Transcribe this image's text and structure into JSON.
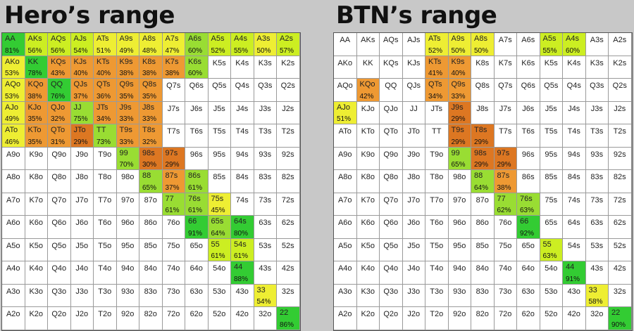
{
  "colors": {
    "empty": "#ffffff",
    "bright_green": "#33cc33",
    "light_green": "#99dd33",
    "yellow_green": "#ccee22",
    "yellow": "#eeee33",
    "orange": "#ee9933",
    "dark_orange": "#dd7722"
  },
  "hands": [
    [
      "AA",
      "AKs",
      "AQs",
      "AJs",
      "ATs",
      "A9s",
      "A8s",
      "A7s",
      "A6s",
      "A5s",
      "A4s",
      "A3s",
      "A2s"
    ],
    [
      "AKo",
      "KK",
      "KQs",
      "KJs",
      "KTs",
      "K9s",
      "K8s",
      "K7s",
      "K6s",
      "K5s",
      "K4s",
      "K3s",
      "K2s"
    ],
    [
      "AQo",
      "KQo",
      "QQ",
      "QJs",
      "QTs",
      "Q9s",
      "Q8s",
      "Q7s",
      "Q6s",
      "Q5s",
      "Q4s",
      "Q3s",
      "Q2s"
    ],
    [
      "AJo",
      "KJo",
      "QJo",
      "JJ",
      "JTs",
      "J9s",
      "J8s",
      "J7s",
      "J6s",
      "J5s",
      "J4s",
      "J3s",
      "J2s"
    ],
    [
      "ATo",
      "KTo",
      "QTo",
      "JTo",
      "TT",
      "T9s",
      "T8s",
      "T7s",
      "T6s",
      "T5s",
      "T4s",
      "T3s",
      "T2s"
    ],
    [
      "A9o",
      "K9o",
      "Q9o",
      "J9o",
      "T9o",
      "99",
      "98s",
      "97s",
      "96s",
      "95s",
      "94s",
      "93s",
      "92s"
    ],
    [
      "A8o",
      "K8o",
      "Q8o",
      "J8o",
      "T8o",
      "98o",
      "88",
      "87s",
      "86s",
      "85s",
      "84s",
      "83s",
      "82s"
    ],
    [
      "A7o",
      "K7o",
      "Q7o",
      "J7o",
      "T7o",
      "97o",
      "87o",
      "77",
      "76s",
      "75s",
      "74s",
      "73s",
      "72s"
    ],
    [
      "A6o",
      "K6o",
      "Q6o",
      "J6o",
      "T6o",
      "96o",
      "86o",
      "76o",
      "66",
      "65s",
      "64s",
      "63s",
      "62s"
    ],
    [
      "A5o",
      "K5o",
      "Q5o",
      "J5o",
      "T5o",
      "95o",
      "85o",
      "75o",
      "65o",
      "55",
      "54s",
      "53s",
      "52s"
    ],
    [
      "A4o",
      "K4o",
      "Q4o",
      "J4o",
      "T4o",
      "94o",
      "84o",
      "74o",
      "64o",
      "54o",
      "44",
      "43s",
      "42s"
    ],
    [
      "A3o",
      "K3o",
      "Q3o",
      "J3o",
      "T3o",
      "93o",
      "83o",
      "73o",
      "63o",
      "53o",
      "43o",
      "33",
      "32s"
    ],
    [
      "A2o",
      "K2o",
      "Q2o",
      "J2o",
      "T2o",
      "92o",
      "82o",
      "72o",
      "62o",
      "52o",
      "42o",
      "32o",
      "22"
    ]
  ],
  "hero": {
    "title": "Hero’s range",
    "cells": {
      "0,0": {
        "pct": "81%",
        "color": "bright_green"
      },
      "0,1": {
        "pct": "56%",
        "color": "yellow_green"
      },
      "0,2": {
        "pct": "56%",
        "color": "yellow_green"
      },
      "0,3": {
        "pct": "54%",
        "color": "yellow_green"
      },
      "0,4": {
        "pct": "51%",
        "color": "yellow"
      },
      "0,5": {
        "pct": "49%",
        "color": "yellow"
      },
      "0,6": {
        "pct": "48%",
        "color": "yellow"
      },
      "0,7": {
        "pct": "47%",
        "color": "yellow"
      },
      "0,8": {
        "pct": "60%",
        "color": "light_green"
      },
      "0,9": {
        "pct": "52%",
        "color": "yellow_green"
      },
      "0,10": {
        "pct": "55%",
        "color": "yellow_green"
      },
      "0,11": {
        "pct": "50%",
        "color": "yellow"
      },
      "0,12": {
        "pct": "57%",
        "color": "yellow_green"
      },
      "1,0": {
        "pct": "53%",
        "color": "yellow"
      },
      "1,1": {
        "pct": "78%",
        "color": "bright_green"
      },
      "1,2": {
        "pct": "43%",
        "color": "orange"
      },
      "1,3": {
        "pct": "40%",
        "color": "orange"
      },
      "1,4": {
        "pct": "40%",
        "color": "orange"
      },
      "1,5": {
        "pct": "38%",
        "color": "orange"
      },
      "1,6": {
        "pct": "38%",
        "color": "orange"
      },
      "1,7": {
        "pct": "38%",
        "color": "orange"
      },
      "1,8": {
        "pct": "60%",
        "color": "light_green"
      },
      "2,0": {
        "pct": "53%",
        "color": "yellow"
      },
      "2,1": {
        "pct": "38%",
        "color": "orange"
      },
      "2,2": {
        "pct": "76%",
        "color": "bright_green"
      },
      "2,3": {
        "pct": "37%",
        "color": "orange"
      },
      "2,4": {
        "pct": "36%",
        "color": "orange"
      },
      "2,5": {
        "pct": "35%",
        "color": "orange"
      },
      "2,6": {
        "pct": "35%",
        "color": "orange"
      },
      "3,0": {
        "pct": "49%",
        "color": "yellow"
      },
      "3,1": {
        "pct": "35%",
        "color": "orange"
      },
      "3,2": {
        "pct": "32%",
        "color": "orange"
      },
      "3,3": {
        "pct": "75%",
        "color": "light_green"
      },
      "3,4": {
        "pct": "34%",
        "color": "orange"
      },
      "3,5": {
        "pct": "33%",
        "color": "orange"
      },
      "3,6": {
        "pct": "33%",
        "color": "orange"
      },
      "4,0": {
        "pct": "46%",
        "color": "yellow"
      },
      "4,1": {
        "pct": "35%",
        "color": "orange"
      },
      "4,2": {
        "pct": "31%",
        "color": "orange"
      },
      "4,3": {
        "pct": "29%",
        "color": "dark_orange"
      },
      "4,4": {
        "pct": "73%",
        "color": "light_green"
      },
      "4,5": {
        "pct": "33%",
        "color": "orange"
      },
      "4,6": {
        "pct": "32%",
        "color": "orange"
      },
      "5,5": {
        "pct": "70%",
        "color": "light_green"
      },
      "5,6": {
        "pct": "30%",
        "color": "dark_orange"
      },
      "5,7": {
        "pct": "29%",
        "color": "dark_orange"
      },
      "6,6": {
        "pct": "65%",
        "color": "light_green"
      },
      "6,7": {
        "pct": "37%",
        "color": "orange"
      },
      "6,8": {
        "pct": "61%",
        "color": "light_green"
      },
      "7,7": {
        "pct": "61%",
        "color": "light_green"
      },
      "7,8": {
        "pct": "61%",
        "color": "light_green"
      },
      "7,9": {
        "pct": "45%",
        "color": "yellow"
      },
      "8,8": {
        "pct": "91%",
        "color": "bright_green"
      },
      "8,9": {
        "pct": "64%",
        "color": "light_green"
      },
      "8,10": {
        "pct": "80%",
        "color": "bright_green"
      },
      "9,9": {
        "pct": "61%",
        "color": "yellow_green"
      },
      "9,10": {
        "pct": "61%",
        "color": "yellow_green"
      },
      "10,10": {
        "pct": "88%",
        "color": "bright_green"
      },
      "11,11": {
        "pct": "54%",
        "color": "yellow"
      },
      "12,12": {
        "pct": "86%",
        "color": "bright_green"
      }
    }
  },
  "btn": {
    "title": "BTN’s range",
    "cells": {
      "0,4": {
        "pct": "52%",
        "color": "yellow"
      },
      "0,5": {
        "pct": "50%",
        "color": "yellow"
      },
      "0,6": {
        "pct": "50%",
        "color": "yellow"
      },
      "0,9": {
        "pct": "55%",
        "color": "yellow_green"
      },
      "0,10": {
        "pct": "60%",
        "color": "yellow_green"
      },
      "1,4": {
        "pct": "41%",
        "color": "orange"
      },
      "1,5": {
        "pct": "40%",
        "color": "orange"
      },
      "2,1": {
        "pct": "42%",
        "color": "orange"
      },
      "2,4": {
        "pct": "34%",
        "color": "orange"
      },
      "2,5": {
        "pct": "33%",
        "color": "orange"
      },
      "3,0": {
        "pct": "51%",
        "color": "yellow"
      },
      "3,5": {
        "pct": "29%",
        "color": "dark_orange"
      },
      "4,5": {
        "pct": "29%",
        "color": "dark_orange"
      },
      "4,6": {
        "pct": "29%",
        "color": "dark_orange"
      },
      "5,5": {
        "pct": "65%",
        "color": "light_green"
      },
      "5,6": {
        "pct": "29%",
        "color": "dark_orange"
      },
      "5,7": {
        "pct": "29%",
        "color": "dark_orange"
      },
      "6,6": {
        "pct": "64%",
        "color": "light_green"
      },
      "6,7": {
        "pct": "38%",
        "color": "orange"
      },
      "7,7": {
        "pct": "62%",
        "color": "light_green"
      },
      "7,8": {
        "pct": "63%",
        "color": "light_green"
      },
      "8,8": {
        "pct": "92%",
        "color": "bright_green"
      },
      "9,9": {
        "pct": "63%",
        "color": "yellow_green"
      },
      "10,10": {
        "pct": "91%",
        "color": "bright_green"
      },
      "11,11": {
        "pct": "58%",
        "color": "yellow"
      },
      "12,12": {
        "pct": "90%",
        "color": "bright_green"
      }
    }
  }
}
